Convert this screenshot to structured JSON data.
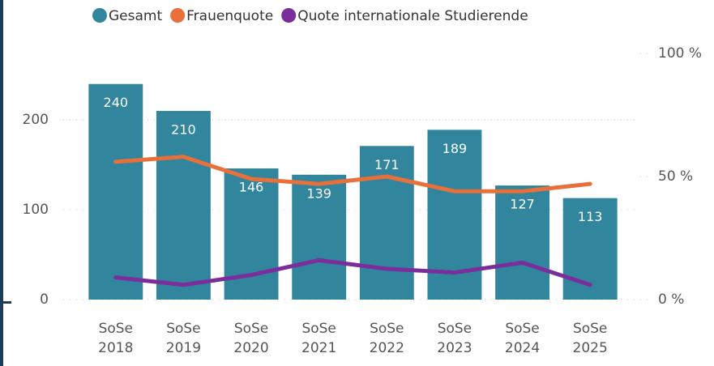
{
  "chart_data": {
    "type": "bar",
    "categories": [
      "SoSe 2018",
      "SoSe 2019",
      "SoSe 2020",
      "SoSe 2021",
      "SoSe 2022",
      "SoSe 2023",
      "SoSe 2024",
      "SoSe 2025"
    ],
    "series": [
      {
        "name": "Gesamt",
        "color": "#31859c",
        "type": "bar",
        "values": [
          240,
          210,
          146,
          139,
          171,
          189,
          127,
          113
        ]
      },
      {
        "name": "Frauenquote",
        "color": "#e8703a",
        "type": "line",
        "axis": "y2",
        "values": [
          56,
          58,
          49,
          47,
          50,
          44,
          44,
          47
        ]
      },
      {
        "name": "Quote internationale Studierende",
        "color": "#7b2d9c",
        "type": "line",
        "axis": "y2",
        "values": [
          9,
          6,
          10,
          16,
          12.5,
          11,
          15,
          6
        ]
      }
    ],
    "ylim": [
      0,
      274
    ],
    "yticks": [
      0,
      100,
      200
    ],
    "y2lim": [
      0,
      100
    ],
    "y2ticks": [
      {
        "value": 0,
        "label": "0 %"
      },
      {
        "value": 50,
        "label": "50 %"
      },
      {
        "value": 100,
        "label": "100 %"
      }
    ],
    "grid": true,
    "legend": "top"
  }
}
